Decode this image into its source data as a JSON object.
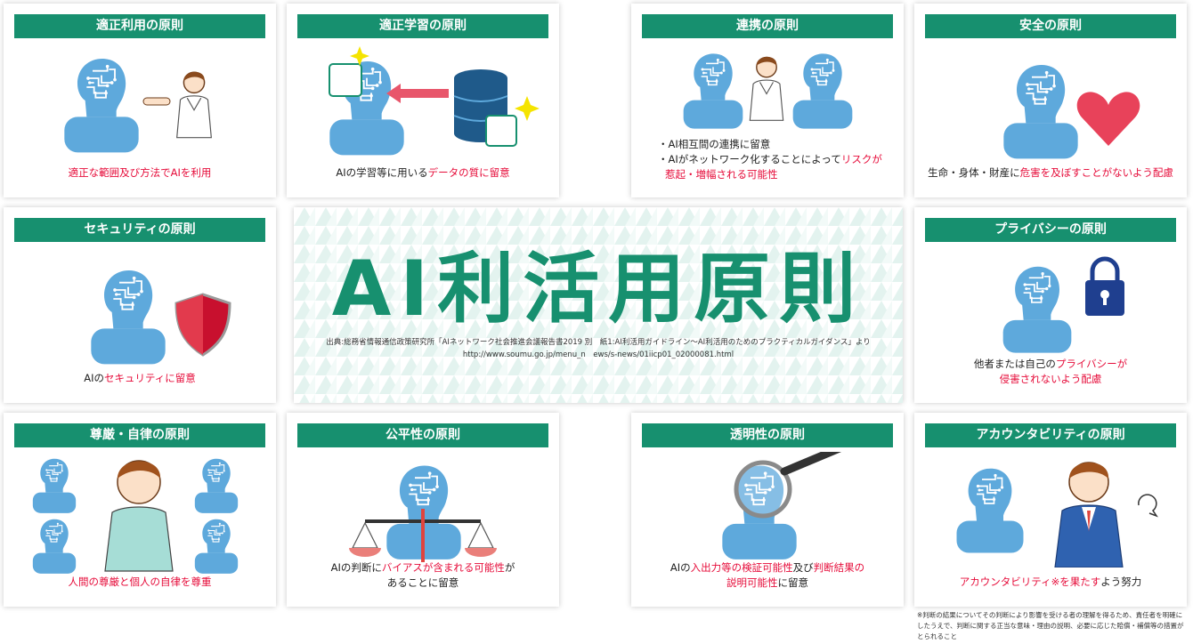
{
  "main_title": "AI利活用原則",
  "source": {
    "line1": "出典:総務省情報通信政策研究所「AIネットワーク社会推進会議報告書2019 別　紙1:AI利活用ガイドライン～AI利活用のためのプラクティカルガイダンス」より",
    "line2": "http://www.soumu.go.jp/menu_n　ews/s-news/01iicp01_02000081.html"
  },
  "principles": {
    "proper_use": {
      "title": "適正利用の原則",
      "cap_a": "適正な範囲及び方法でAIを利用"
    },
    "proper_learning": {
      "title": "適正学習の原則",
      "cap_a": "AIの学習等に用いる",
      "cap_b": "データの質に留意"
    },
    "collaboration": {
      "title": "連携の原則",
      "line1": "・AI相互間の連携に留意",
      "line2_a": "・AIがネットワーク化することによって",
      "line2_b": "リスクが",
      "line3": "惹起・増幅される可能性"
    },
    "safety": {
      "title": "安全の原則",
      "cap_a": "生命・身体・財産に",
      "cap_b": "危害を及ぼすことがないよう配慮"
    },
    "security": {
      "title": "セキュリティの原則",
      "cap_a": "AIの",
      "cap_b": "セキュリティに留意"
    },
    "privacy": {
      "title": "プライバシーの原則",
      "cap_a": "他者または自己の",
      "cap_b": "プライバシーが",
      "cap_c": "侵害されないよう配慮"
    },
    "dignity": {
      "title": "尊厳・自律の原則",
      "cap_a": "人間の尊厳と個人の自律を尊重"
    },
    "fairness": {
      "title": "公平性の原則",
      "cap_a": "AIの判断に",
      "cap_b": "バイアスが含まれる可能性",
      "cap_c": "が",
      "cap_d": "あることに留意"
    },
    "transparency": {
      "title": "透明性の原則",
      "cap_a": "AIの",
      "cap_b": "入出力等の検証可能性",
      "cap_c": "及び",
      "cap_d": "判断結果の",
      "cap_e": "説明可能性",
      "cap_f": "に留意"
    },
    "accountability": {
      "title": "アカウンタビリティの原則",
      "cap_a": "アカウンタビリティ※を果たす",
      "cap_b": "よう努力"
    }
  },
  "footnote": "※判断の結果についてその判断により影響を受ける者の理解を得るため、責任者を明確にしたうえで、判断に関する正当な意味・理由の説明、必要に応じた賠償・補償等の措置がとられること",
  "colors": {
    "accent": "#17906f",
    "highlight": "#e60c3a",
    "figure": "#5ea9dc"
  }
}
